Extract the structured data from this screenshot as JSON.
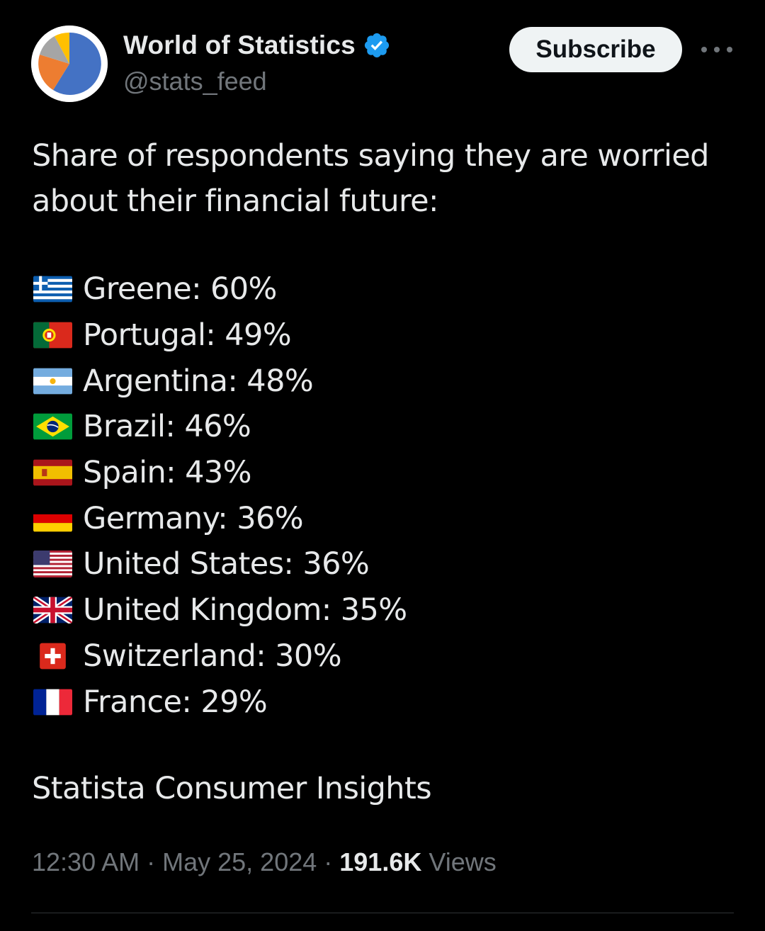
{
  "author": {
    "display_name": "World of Statistics",
    "handle": "@stats_feed",
    "verified": true,
    "avatar_colors": [
      "#4472c4",
      "#ed7d31",
      "#a5a5a5",
      "#ffc000"
    ]
  },
  "actions": {
    "subscribe_label": "Subscribe",
    "more_icon": "more-horizontal-icon"
  },
  "post": {
    "intro": "Share of respondents saying they are worried about their financial future:",
    "items": [
      {
        "flag": "greece-flag-icon",
        "text": "Greene: 60%"
      },
      {
        "flag": "portugal-flag-icon",
        "text": "Portugal: 49%"
      },
      {
        "flag": "argentina-flag-icon",
        "text": "Argentina: 48%"
      },
      {
        "flag": "brazil-flag-icon",
        "text": "Brazil: 46%"
      },
      {
        "flag": "spain-flag-icon",
        "text": "Spain: 43%"
      },
      {
        "flag": "germany-flag-icon",
        "text": "Germany: 36%"
      },
      {
        "flag": "usa-flag-icon",
        "text": "United States: 36%"
      },
      {
        "flag": "uk-flag-icon",
        "text": "United Kingdom: 35%"
      },
      {
        "flag": "switzerland-flag-icon",
        "text": "Switzerland: 30%"
      },
      {
        "flag": "france-flag-icon",
        "text": "France: 29%"
      }
    ],
    "source": "Statista Consumer Insights"
  },
  "meta": {
    "time": "12:30 AM",
    "separator": "·",
    "date": "May 25, 2024",
    "views_count": "191.6K",
    "views_label": "Views"
  },
  "colors": {
    "background": "#000000",
    "text_primary": "#e7e9ea",
    "text_secondary": "#71767b",
    "verified_blue": "#1d9bf0",
    "button_bg": "#eff3f4",
    "divider": "#2f3336"
  }
}
